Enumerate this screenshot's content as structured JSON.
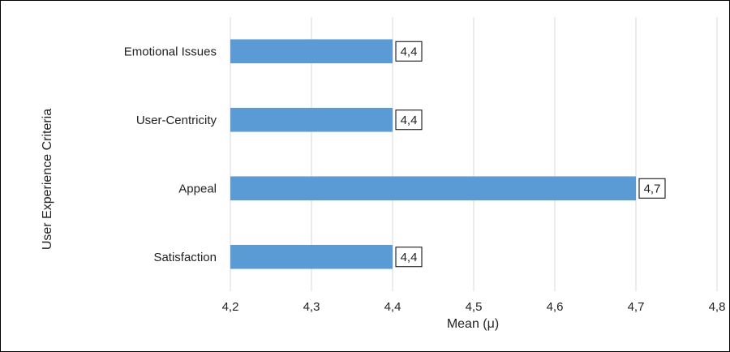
{
  "chart_data": {
    "type": "bar",
    "orientation": "horizontal",
    "categories": [
      "Satisfaction",
      "Appeal",
      "User-Centricity",
      "Emotional Issues"
    ],
    "values": [
      4.4,
      4.7,
      4.4,
      4.4
    ],
    "data_labels": [
      "4,4",
      "4,7",
      "4,4",
      "4,4"
    ],
    "xlabel": "Mean (μ)",
    "ylabel": "User Experience Criteria",
    "xlim": [
      4.2,
      4.8
    ],
    "x_ticks": [
      4.2,
      4.3,
      4.4,
      4.5,
      4.6,
      4.7,
      4.8
    ],
    "x_tick_labels": [
      "4,2",
      "4,3",
      "4,4",
      "4,5",
      "4,6",
      "4,7",
      "4,8"
    ],
    "grid": "vertical",
    "bar_color": "#5b9bd5",
    "grid_color": "#d9d9d9",
    "legend": "none"
  }
}
